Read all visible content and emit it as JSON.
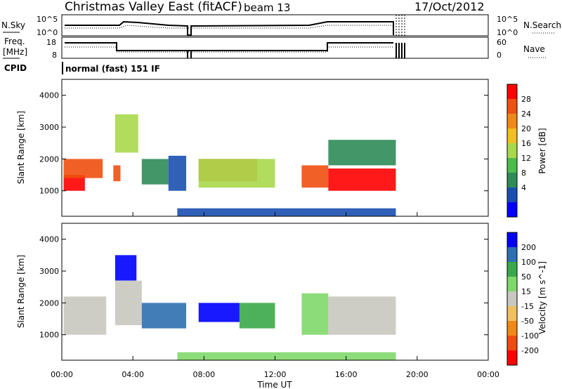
{
  "header": {
    "title": "Christmas Valley East (fitACF)",
    "beam": "beam 13",
    "date": "17/Oct/2012"
  },
  "sky_panel": {
    "left_label": "N.Sky",
    "right_label": "N.Search",
    "ticks": [
      "10^5",
      "10^0"
    ]
  },
  "freq_panel": {
    "left_label_top": "Freq.",
    "left_label_bottom": "[MHz]",
    "left_ticks": [
      "18",
      "8"
    ],
    "right_ticks": [
      "60",
      "0"
    ],
    "right_label": "Nave"
  },
  "cpid": {
    "label": "CPID",
    "text": "normal (fast) 151 IF"
  },
  "chart_data": [
    {
      "type": "heatmap",
      "title": "",
      "ylabel": "Slant Range [km]",
      "ylim": [
        200,
        4500
      ],
      "yticks": [
        "4000",
        "3000",
        "2000",
        "1000"
      ],
      "colorbar_label": "Power [dB]",
      "colorbar_ticks": [
        "28",
        "24",
        "20",
        "16",
        "12",
        "8",
        "4"
      ],
      "colors": [
        "#0000ff",
        "#1a4fb0",
        "#2e8b57",
        "#4cbc4c",
        "#a8d84c",
        "#f0c020",
        "#f08a10",
        "#f05010",
        "#ff0000"
      ],
      "regions": [
        {
          "t": [
            0.1,
            1.3
          ],
          "r": [
            1000,
            1500
          ],
          "level": 8
        },
        {
          "t": [
            0.1,
            2.3
          ],
          "r": [
            1400,
            2000
          ],
          "level": 7
        },
        {
          "t": [
            2.9,
            3.3
          ],
          "r": [
            1300,
            1800
          ],
          "level": 7
        },
        {
          "t": [
            3.0,
            4.3
          ],
          "r": [
            2200,
            3400
          ],
          "level": 4
        },
        {
          "t": [
            4.5,
            6.0
          ],
          "r": [
            1200,
            2000
          ],
          "level": 2
        },
        {
          "t": [
            6.0,
            7.0
          ],
          "r": [
            1000,
            2100
          ],
          "level": 1
        },
        {
          "t": [
            7.7,
            11.0
          ],
          "r": [
            1300,
            2000
          ],
          "level": 7
        },
        {
          "t": [
            7.7,
            12.0
          ],
          "r": [
            1100,
            2000
          ],
          "level": 4
        },
        {
          "t": [
            13.5,
            15.0
          ],
          "r": [
            1100,
            1800
          ],
          "level": 7
        },
        {
          "t": [
            15.0,
            18.8
          ],
          "r": [
            1000,
            1700
          ],
          "level": 8
        },
        {
          "t": [
            15.0,
            18.8
          ],
          "r": [
            1800,
            2600
          ],
          "level": 2
        },
        {
          "t": [
            6.5,
            18.8
          ],
          "r": [
            200,
            450
          ],
          "level": 1
        }
      ]
    },
    {
      "type": "heatmap",
      "title": "",
      "ylabel": "Slant Range [km]",
      "ylim": [
        200,
        4500
      ],
      "xlabel": "Time UT",
      "xticks": [
        "00:00",
        "04:00",
        "08:00",
        "12:00",
        "16:00",
        "20:00",
        "00:00"
      ],
      "yticks": [
        "4000",
        "3000",
        "2000",
        "1000"
      ],
      "colorbar_label": "Velocity [m s^-1]",
      "colorbar_ticks": [
        "200",
        "100",
        "50",
        "15",
        "-15",
        "-50",
        "-100",
        "-200"
      ],
      "colors": [
        "#ff0000",
        "#f04a10",
        "#f08a10",
        "#f0c060",
        "#c8c8c0",
        "#7fd86a",
        "#3aa84a",
        "#2e6fb0",
        "#0000ff"
      ],
      "regions": [
        {
          "t": [
            0.1,
            2.5
          ],
          "r": [
            1000,
            2200
          ],
          "level": 4
        },
        {
          "t": [
            3.0,
            4.2
          ],
          "r": [
            2700,
            3500
          ],
          "level": 8
        },
        {
          "t": [
            3.0,
            4.5
          ],
          "r": [
            1300,
            2700
          ],
          "level": 4
        },
        {
          "t": [
            4.5,
            7.0
          ],
          "r": [
            1200,
            2000
          ],
          "level": 7
        },
        {
          "t": [
            7.7,
            10.0
          ],
          "r": [
            1400,
            2000
          ],
          "level": 8
        },
        {
          "t": [
            10.0,
            12.0
          ],
          "r": [
            1200,
            2000
          ],
          "level": 6
        },
        {
          "t": [
            13.5,
            15.0
          ],
          "r": [
            1000,
            2300
          ],
          "level": 5
        },
        {
          "t": [
            15.0,
            18.8
          ],
          "r": [
            1000,
            2200
          ],
          "level": 4
        },
        {
          "t": [
            6.5,
            18.8
          ],
          "r": [
            200,
            450
          ],
          "level": 5
        }
      ]
    }
  ]
}
